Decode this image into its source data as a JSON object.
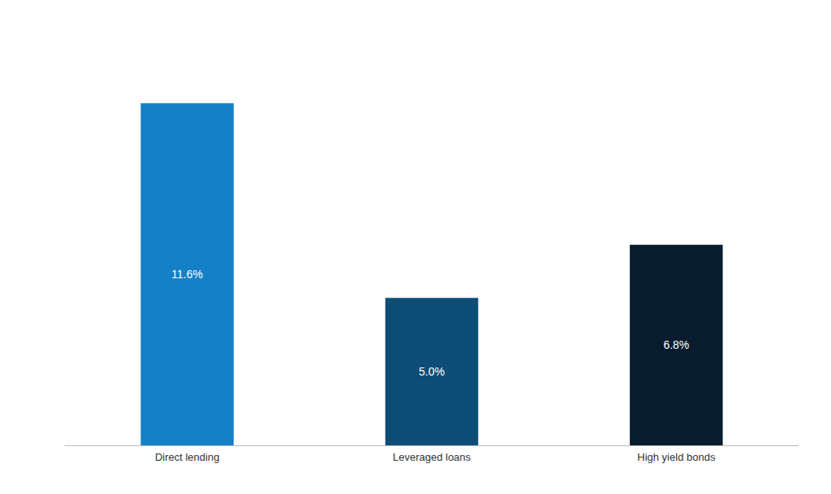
{
  "chart_data": {
    "type": "bar",
    "categories": [
      "Direct lending",
      "Leveraged loans",
      "High yield bonds"
    ],
    "values": [
      11.6,
      5.0,
      6.8
    ],
    "value_labels": [
      "11.6%",
      "5.0%",
      "6.8%"
    ],
    "colors": [
      "#1480C8",
      "#0E4D78",
      "#081C2E"
    ],
    "ylim": [
      0,
      14
    ],
    "grid": false,
    "data_labels": true,
    "tick_labels": "x"
  }
}
